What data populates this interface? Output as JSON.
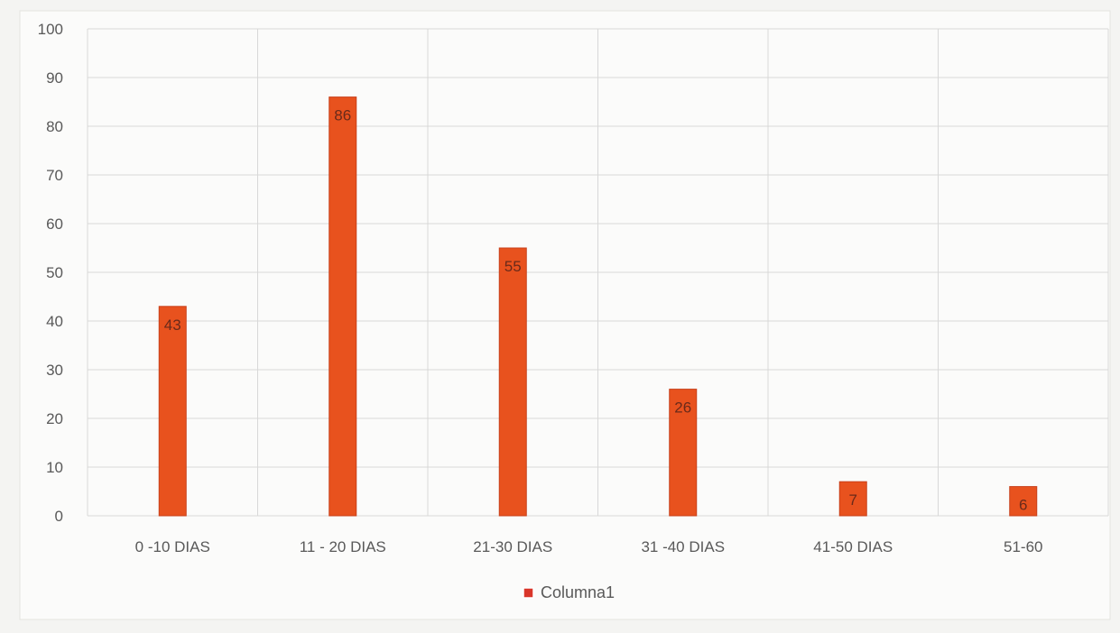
{
  "chart_data": {
    "type": "bar",
    "title": "",
    "xlabel": "",
    "ylabel": "",
    "categories": [
      "0 -10 DIAS",
      "11 - 20 DIAS",
      "21-30 DIAS",
      "31 -40 DIAS",
      "41-50 DIAS",
      "51-60"
    ],
    "series": [
      {
        "name": "Columna1",
        "values": [
          43,
          86,
          55,
          26,
          7,
          6
        ]
      }
    ],
    "ylim": [
      0,
      100
    ],
    "yticks": [
      0,
      10,
      20,
      30,
      40,
      50,
      60,
      70,
      80,
      90,
      100
    ],
    "grid": true,
    "legend_position": "bottom",
    "colors": {
      "bar": "#e8521e",
      "bar_edge": "#c8401a",
      "legend_swatch": "#d9362a",
      "grid": "#d8d8d8",
      "text": "#595959"
    }
  }
}
